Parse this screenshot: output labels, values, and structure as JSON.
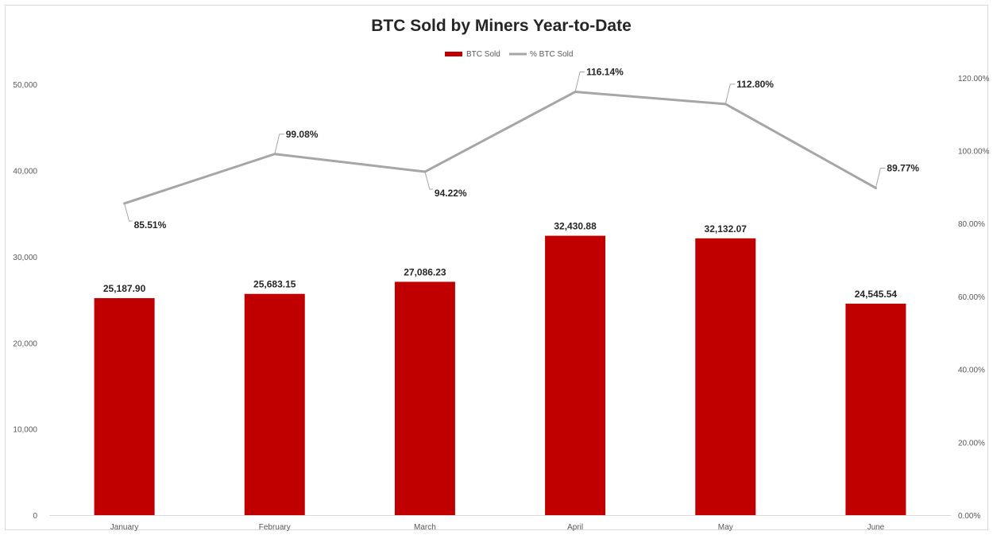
{
  "chart_data": {
    "type": "bar",
    "title": "BTC Sold by Miners Year-to-Date",
    "categories": [
      "January",
      "February",
      "March",
      "April",
      "May",
      "June"
    ],
    "series": [
      {
        "name": "BTC Sold",
        "type": "bar",
        "axis": "left",
        "color": "#c00000",
        "values": [
          25187.9,
          25683.15,
          27086.23,
          32430.88,
          32132.07,
          24545.54
        ],
        "labels": [
          "25,187.90",
          "25,683.15",
          "27,086.23",
          "32,430.88",
          "32,132.07",
          "24,545.54"
        ]
      },
      {
        "name": "% BTC Sold",
        "type": "line",
        "axis": "right",
        "color": "#a6a6a6",
        "values": [
          85.51,
          99.08,
          94.22,
          116.14,
          112.8,
          89.77
        ],
        "labels": [
          "85.51%",
          "99.08%",
          "94.22%",
          "116.14%",
          "112.80%",
          "89.77%"
        ]
      }
    ],
    "y_left": {
      "ylim": [
        0,
        55000
      ],
      "ticks": [
        0,
        10000,
        20000,
        30000,
        40000,
        50000
      ],
      "tick_labels": [
        "0",
        "10,000",
        "20,000",
        "30,000",
        "40,000",
        "50,000"
      ]
    },
    "y_right": {
      "ylim": [
        0,
        130
      ],
      "ticks": [
        0,
        20,
        40,
        60,
        80,
        100,
        120
      ],
      "tick_labels": [
        "0.00%",
        "20.00%",
        "40.00%",
        "60.00%",
        "80.00%",
        "100.00%",
        "120.00%"
      ]
    },
    "legend": "top-center",
    "grid": false
  }
}
